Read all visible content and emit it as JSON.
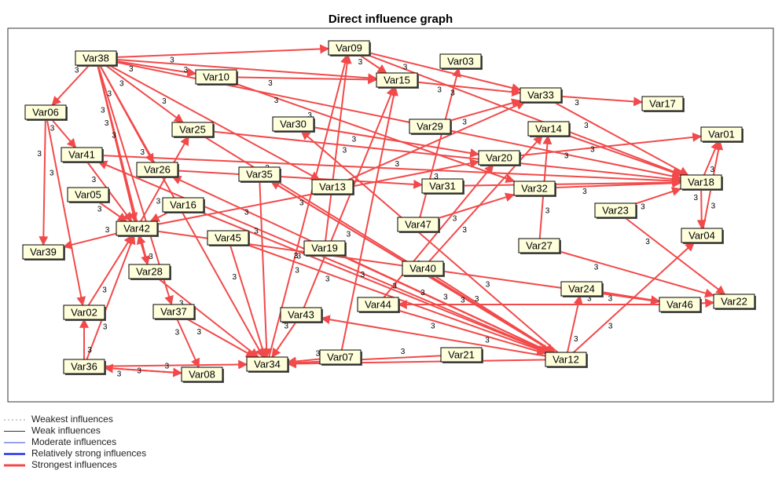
{
  "title": "Direct influence graph",
  "nodes": [
    {
      "label": "Var38"
    },
    {
      "label": "Var09"
    },
    {
      "label": "Var03"
    },
    {
      "label": "Var10"
    },
    {
      "label": "Var15"
    },
    {
      "label": "Var33"
    },
    {
      "label": "Var17"
    },
    {
      "label": "Var06"
    },
    {
      "label": "Var30"
    },
    {
      "label": "Var29"
    },
    {
      "label": "Var14"
    },
    {
      "label": "Var01"
    },
    {
      "label": "Var25"
    },
    {
      "label": "Var41"
    },
    {
      "label": "Var26"
    },
    {
      "label": "Var20"
    },
    {
      "label": "Var35"
    },
    {
      "label": "Var13"
    },
    {
      "label": "Var31"
    },
    {
      "label": "Var32"
    },
    {
      "label": "Var18"
    },
    {
      "label": "Var05"
    },
    {
      "label": "Var16"
    },
    {
      "label": "Var23"
    },
    {
      "label": "Var42"
    },
    {
      "label": "Var47"
    },
    {
      "label": "Var04"
    },
    {
      "label": "Var45"
    },
    {
      "label": "Var39"
    },
    {
      "label": "Var19"
    },
    {
      "label": "Var27"
    },
    {
      "label": "Var40"
    },
    {
      "label": "Var28"
    },
    {
      "label": "Var24"
    },
    {
      "label": "Var22"
    },
    {
      "label": "Var46"
    },
    {
      "label": "Var44"
    },
    {
      "label": "Var02"
    },
    {
      "label": "Var37"
    },
    {
      "label": "Var43"
    },
    {
      "label": "Var36"
    },
    {
      "label": "Var08"
    },
    {
      "label": "Var34"
    },
    {
      "label": "Var07"
    },
    {
      "label": "Var21"
    },
    {
      "label": "Var12"
    }
  ],
  "edges": [
    {
      "from": 0,
      "to": 1,
      "weight": 3
    },
    {
      "from": 0,
      "to": 3,
      "weight": 3
    },
    {
      "from": 0,
      "to": 7,
      "weight": 3
    },
    {
      "from": 0,
      "to": 12,
      "weight": 3
    },
    {
      "from": 0,
      "to": 14,
      "weight": 3
    },
    {
      "from": 0,
      "to": 24,
      "weight": 3
    },
    {
      "from": 0,
      "to": 32,
      "weight": 3
    },
    {
      "from": 0,
      "to": 38,
      "weight": 3
    },
    {
      "from": 0,
      "to": 4,
      "weight": 3
    },
    {
      "from": 0,
      "to": 17,
      "weight": 3
    },
    {
      "from": 0,
      "to": 42,
      "weight": 3
    },
    {
      "from": 0,
      "to": 20,
      "weight": 3
    },
    {
      "from": 3,
      "to": 4,
      "weight": 3
    },
    {
      "from": 3,
      "to": 19,
      "weight": 3
    },
    {
      "from": 1,
      "to": 4,
      "weight": 3
    },
    {
      "from": 1,
      "to": 5,
      "weight": 3
    },
    {
      "from": 1,
      "to": 20,
      "weight": 3
    },
    {
      "from": 4,
      "to": 5,
      "weight": 3
    },
    {
      "from": 25,
      "to": 2,
      "weight": 3
    },
    {
      "from": 5,
      "to": 6,
      "weight": 3
    },
    {
      "from": 5,
      "to": 20,
      "weight": 3
    },
    {
      "from": 10,
      "to": 20,
      "weight": 3
    },
    {
      "from": 15,
      "to": 11,
      "weight": 3
    },
    {
      "from": 20,
      "to": 11,
      "weight": 3
    },
    {
      "from": 26,
      "to": 11,
      "weight": 3
    },
    {
      "from": 20,
      "to": 26,
      "weight": 3
    },
    {
      "from": 7,
      "to": 28,
      "weight": 3
    },
    {
      "from": 7,
      "to": 37,
      "weight": 3
    },
    {
      "from": 7,
      "to": 13,
      "weight": 3
    },
    {
      "from": 13,
      "to": 24,
      "weight": 3
    },
    {
      "from": 13,
      "to": 20,
      "weight": 3
    },
    {
      "from": 21,
      "to": 24,
      "weight": 3
    },
    {
      "from": 24,
      "to": 28,
      "weight": 3
    },
    {
      "from": 24,
      "to": 12,
      "weight": 3
    },
    {
      "from": 22,
      "to": 24,
      "weight": 3
    },
    {
      "from": 32,
      "to": 24,
      "weight": 3
    },
    {
      "from": 37,
      "to": 24,
      "weight": 3
    },
    {
      "from": 40,
      "to": 24,
      "weight": 3
    },
    {
      "from": 40,
      "to": 37,
      "weight": 3
    },
    {
      "from": 40,
      "to": 41,
      "weight": 3
    },
    {
      "from": 41,
      "to": 40,
      "weight": 3
    },
    {
      "from": 40,
      "to": 42,
      "weight": 3
    },
    {
      "from": 38,
      "to": 41,
      "weight": 3
    },
    {
      "from": 38,
      "to": 42,
      "weight": 3
    },
    {
      "from": 32,
      "to": 42,
      "weight": 3
    },
    {
      "from": 27,
      "to": 42,
      "weight": 3
    },
    {
      "from": 16,
      "to": 42,
      "weight": 3
    },
    {
      "from": 39,
      "to": 42,
      "weight": 3
    },
    {
      "from": 43,
      "to": 42,
      "weight": 3
    },
    {
      "from": 45,
      "to": 42,
      "weight": 3
    },
    {
      "from": 44,
      "to": 42,
      "weight": 3
    },
    {
      "from": 45,
      "to": 39,
      "weight": 3
    },
    {
      "from": 45,
      "to": 33,
      "weight": 3
    },
    {
      "from": 45,
      "to": 26,
      "weight": 3
    },
    {
      "from": 45,
      "to": 8,
      "weight": 3
    },
    {
      "from": 45,
      "to": 16,
      "weight": 3
    },
    {
      "from": 45,
      "to": 14,
      "weight": 3
    },
    {
      "from": 45,
      "to": 13,
      "weight": 3
    },
    {
      "from": 35,
      "to": 34,
      "weight": 3
    },
    {
      "from": 35,
      "to": 36,
      "weight": 3
    },
    {
      "from": 30,
      "to": 34,
      "weight": 3
    },
    {
      "from": 23,
      "to": 34,
      "weight": 3
    },
    {
      "from": 23,
      "to": 20,
      "weight": 3
    },
    {
      "from": 19,
      "to": 20,
      "weight": 3
    },
    {
      "from": 18,
      "to": 20,
      "weight": 3
    },
    {
      "from": 17,
      "to": 5,
      "weight": 3
    },
    {
      "from": 8,
      "to": 15,
      "weight": 3
    },
    {
      "from": 9,
      "to": 5,
      "weight": 3
    },
    {
      "from": 12,
      "to": 20,
      "weight": 3
    },
    {
      "from": 12,
      "to": 45,
      "weight": 3
    },
    {
      "from": 16,
      "to": 45,
      "weight": 3
    },
    {
      "from": 29,
      "to": 45,
      "weight": 3
    },
    {
      "from": 31,
      "to": 45,
      "weight": 3
    },
    {
      "from": 22,
      "to": 45,
      "weight": 3
    },
    {
      "from": 27,
      "to": 45,
      "weight": 3
    },
    {
      "from": 36,
      "to": 45,
      "weight": 3
    },
    {
      "from": 39,
      "to": 4,
      "weight": 3
    },
    {
      "from": 43,
      "to": 4,
      "weight": 3
    },
    {
      "from": 42,
      "to": 1,
      "weight": 3
    },
    {
      "from": 29,
      "to": 1,
      "weight": 3
    },
    {
      "from": 36,
      "to": 15,
      "weight": 3
    },
    {
      "from": 25,
      "to": 19,
      "weight": 3
    },
    {
      "from": 30,
      "to": 10,
      "weight": 3
    },
    {
      "from": 31,
      "to": 10,
      "weight": 3
    },
    {
      "from": 24,
      "to": 15,
      "weight": 3
    },
    {
      "from": 14,
      "to": 18,
      "weight": 3
    },
    {
      "from": 33,
      "to": 35,
      "weight": 3
    },
    {
      "from": 24,
      "to": 35,
      "weight": 3
    }
  ],
  "legend": [
    "Weakest influences",
    "Weak influences",
    "Moderate influences",
    "Relatively strong influences",
    "Strongest influences"
  ]
}
